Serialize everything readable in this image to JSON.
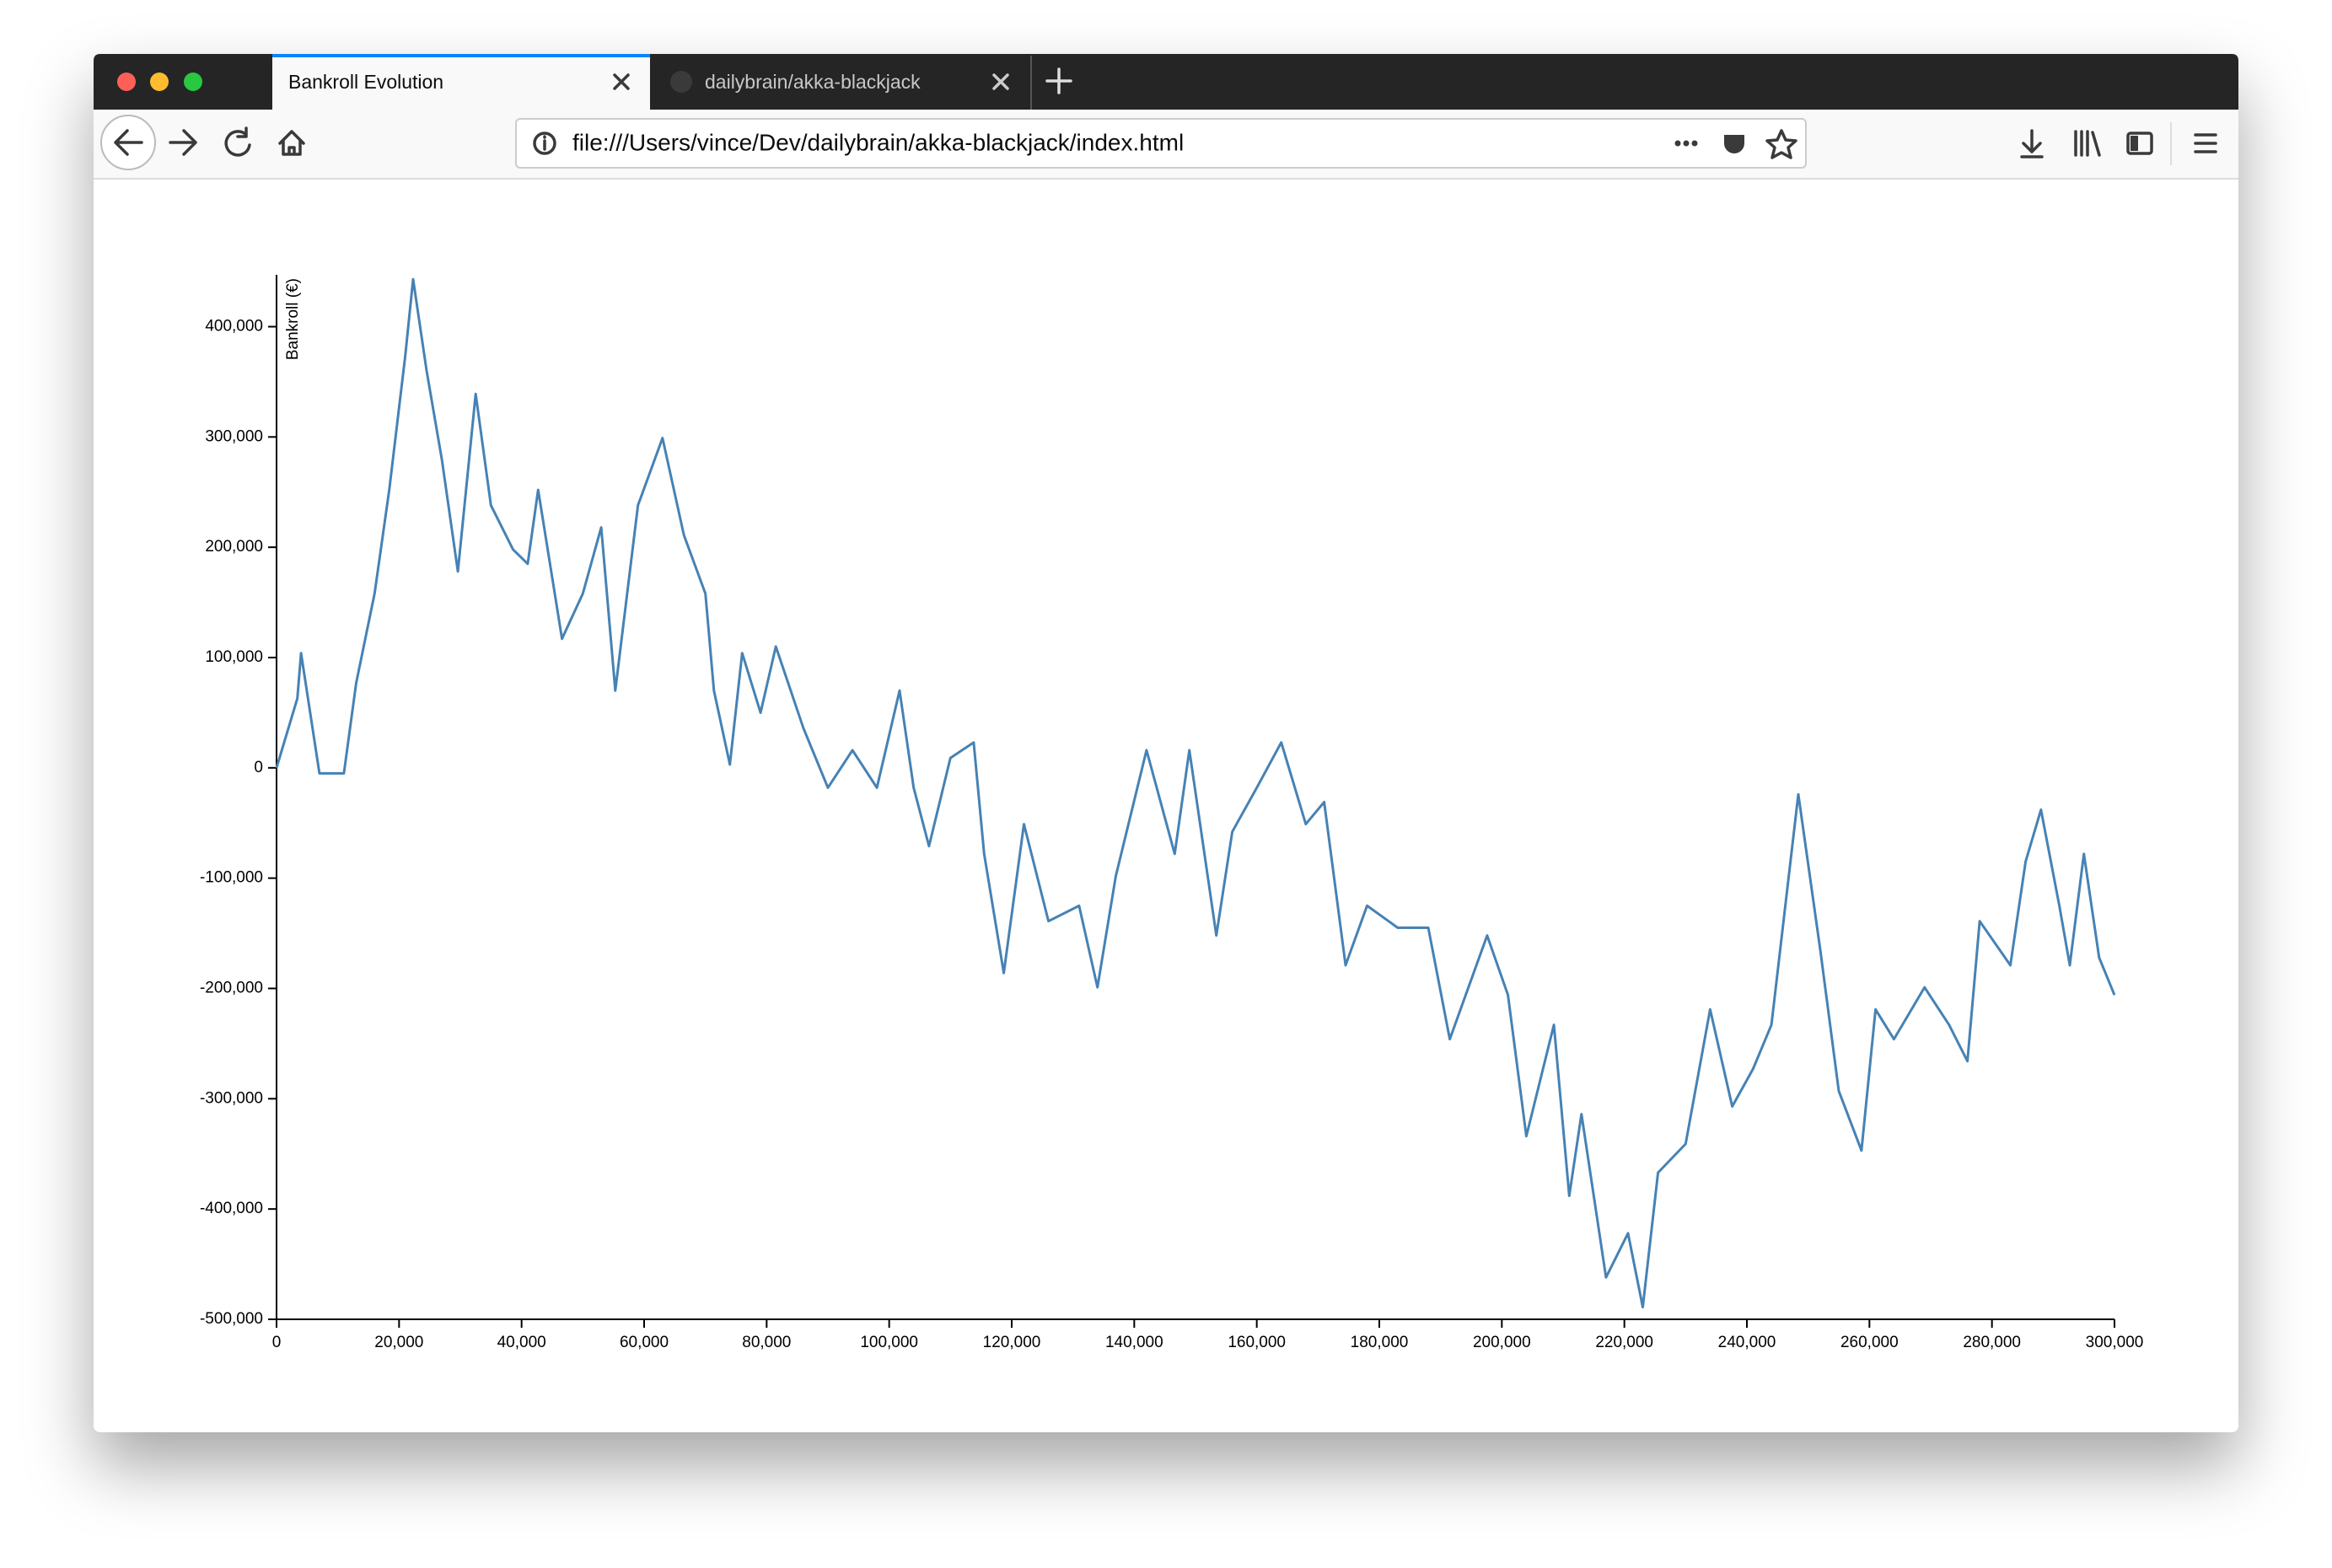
{
  "browser": {
    "tabs": [
      "Bankroll Evolution",
      "dailybrain/akka-blackjack"
    ],
    "url": "file:///Users/vince/Dev/dailybrain/akka-blackjack/index.html"
  },
  "chart_data": {
    "type": "line",
    "y_label": "Bankroll (€)",
    "x": [
      0,
      3400,
      4000,
      7000,
      11000,
      13000,
      16000,
      18400,
      21000,
      22300,
      24500,
      27000,
      29600,
      32500,
      35000,
      38600,
      41000,
      42700,
      46600,
      50000,
      53000,
      55300,
      59000,
      63000,
      66500,
      70000,
      71400,
      74000,
      76000,
      79000,
      81500,
      86000,
      90000,
      94000,
      98000,
      101700,
      104000,
      106500,
      110000,
      113800,
      115500,
      118700,
      122000,
      126000,
      131000,
      134000,
      137000,
      142000,
      146600,
      149000,
      153400,
      156000,
      160000,
      164000,
      168000,
      171000,
      174500,
      178000,
      183000,
      188000,
      191500,
      197600,
      201000,
      204000,
      208500,
      211000,
      213000,
      217000,
      220600,
      223000,
      225500,
      230000,
      234000,
      237600,
      241000,
      244000,
      248400,
      252000,
      255000,
      258700,
      261000,
      264000,
      269000,
      273000,
      276000,
      278000,
      283000,
      285500,
      288000,
      291000,
      292700,
      295000,
      297500,
      300000
    ],
    "series": [
      {
        "name": "Bankroll",
        "color": "#4682b4",
        "values": [
          0,
          63000,
          104000,
          -5000,
          -5000,
          77000,
          158000,
          252000,
          373000,
          443000,
          360000,
          279000,
          178000,
          339000,
          238000,
          198000,
          185000,
          252000,
          117000,
          158000,
          218000,
          70000,
          238000,
          299000,
          211000,
          158000,
          70000,
          3000,
          104000,
          50000,
          110000,
          36000,
          -18000,
          16000,
          -18000,
          70000,
          -18000,
          -71000,
          9000,
          23000,
          -78000,
          -186000,
          -51000,
          -139000,
          -125000,
          -199000,
          -98000,
          16000,
          -78000,
          16000,
          -152000,
          -58000,
          -18000,
          23000,
          -51000,
          -31000,
          -179000,
          -125000,
          -145000,
          -145000,
          -246000,
          -152000,
          -206000,
          -334000,
          -233000,
          -388000,
          -314000,
          -462000,
          -422000,
          -489000,
          -367000,
          -341000,
          -219000,
          -307000,
          -273000,
          -233000,
          -24000,
          -166000,
          -293000,
          -347000,
          -219000,
          -246000,
          -199000,
          -233000,
          -266000,
          -139000,
          -179000,
          -85000,
          -38000,
          -125000,
          -179000,
          -78000,
          -172000,
          -206000
        ]
      }
    ],
    "xlim": [
      0,
      300000
    ],
    "ylim": [
      -500000,
      447000
    ],
    "xticks": [
      0,
      {
        "value": 20000,
        "label": "20,000"
      },
      {
        "value": 40000,
        "label": "40,000"
      },
      {
        "value": 60000,
        "label": "60,000"
      },
      {
        "value": 80000,
        "label": "80,000"
      },
      {
        "value": 100000,
        "label": "100,000"
      },
      {
        "value": 120000,
        "label": "120,000"
      },
      {
        "value": 140000,
        "label": "140,000"
      },
      {
        "value": 160000,
        "label": "160,000"
      },
      {
        "value": 180000,
        "label": "180,000"
      },
      {
        "value": 200000,
        "label": "200,000"
      },
      {
        "value": 220000,
        "label": "220,000"
      },
      {
        "value": 240000,
        "label": "240,000"
      },
      {
        "value": 260000,
        "label": "260,000"
      },
      {
        "value": 280000,
        "label": "280,000"
      },
      {
        "value": 300000,
        "label": "300,000"
      }
    ],
    "yticks": [
      {
        "value": -500000,
        "label": "-500,000"
      },
      {
        "value": -400000,
        "label": "-400,000"
      },
      {
        "value": -300000,
        "label": "-300,000"
      },
      {
        "value": -200000,
        "label": "-200,000"
      },
      {
        "value": -100000,
        "label": "-100,000"
      },
      0,
      {
        "value": 100000,
        "label": "100,000"
      },
      {
        "value": 200000,
        "label": "200,000"
      },
      {
        "value": 300000,
        "label": "300,000"
      },
      {
        "value": 400000,
        "label": "400,000"
      }
    ],
    "grid": false
  }
}
